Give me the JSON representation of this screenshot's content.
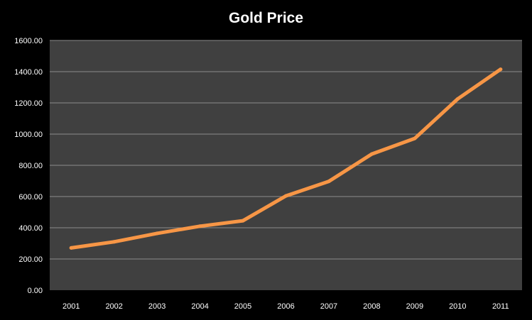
{
  "chart_data": {
    "type": "line",
    "title": "Gold Price",
    "xlabel": "",
    "ylabel": "",
    "categories": [
      "2001",
      "2002",
      "2003",
      "2004",
      "2005",
      "2006",
      "2007",
      "2008",
      "2009",
      "2010",
      "2011"
    ],
    "series": [
      {
        "values": [
          271,
          310,
          364,
          410,
          445,
          604,
          697,
          872,
          972,
          1225,
          1415
        ]
      }
    ],
    "ylim": [
      0,
      1600
    ],
    "yticks": [
      "0.00",
      "200.00",
      "400.00",
      "600.00",
      "800.00",
      "1000.00",
      "1200.00",
      "1400.00",
      "1600.00"
    ],
    "grid": "horizontal",
    "legend": "none",
    "colors": {
      "background": "#000000",
      "plot_area": "#404040",
      "gridline": "#8c8c8c",
      "line": "#f79646",
      "text": "#ffffff"
    }
  }
}
